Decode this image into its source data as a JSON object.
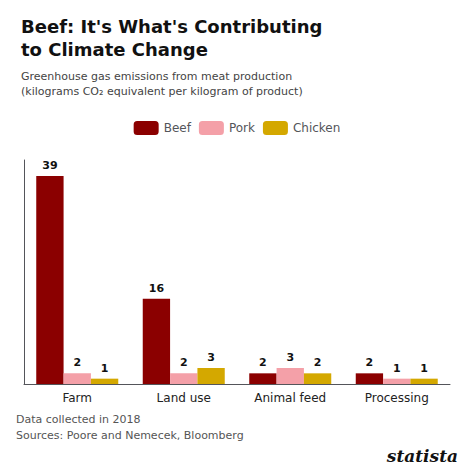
{
  "chart_data": {
    "type": "bar",
    "title": "Beef: It's What's Contributing\nto Climate Change",
    "subtitle": "Greenhouse gas emissions from meat production\n(kilograms CO₂ equivalent per kilogram of product)",
    "categories": [
      "Farm",
      "Land use",
      "Animal feed",
      "Processing"
    ],
    "series": [
      {
        "name": "Beef",
        "color": "#8B0000",
        "values": [
          39,
          16,
          2,
          2
        ]
      },
      {
        "name": "Pork",
        "color": "#F4A0A8",
        "values": [
          2,
          2,
          3,
          1
        ]
      },
      {
        "name": "Chicken",
        "color": "#D4A800",
        "values": [
          1,
          3,
          2,
          1
        ]
      }
    ],
    "ylim": [
      0,
      42
    ],
    "grid": false,
    "legend": "top",
    "data_labels": true,
    "tick_labels": "x",
    "annotations": [
      "Data collected in 2018",
      "Sources: Poore and Nemecek, Bloomberg",
      "statista"
    ]
  }
}
